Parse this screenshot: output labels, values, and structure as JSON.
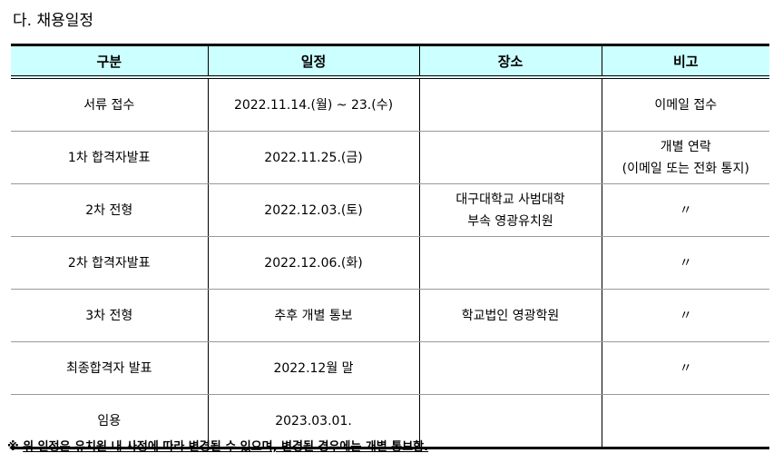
{
  "title": "다. 채용일정",
  "table": {
    "headers": [
      "구분",
      "일정",
      "장소",
      "비고"
    ],
    "rows": [
      {
        "category": "서류 접수",
        "schedule": "2022.11.14.(월) ~ 23.(수)",
        "place": "",
        "note": [
          "이메일 접수"
        ]
      },
      {
        "category": "1차 합격자발표",
        "schedule": "2022.11.25.(금)",
        "place": "",
        "note": [
          "개별 연락",
          "(이메일 또는 전화 통지)"
        ]
      },
      {
        "category": "2차 전형",
        "schedule": "2022.12.03.(토)",
        "place": [
          "대구대학교 사범대학",
          "부속 영광유치원"
        ],
        "note": [
          "〃"
        ]
      },
      {
        "category": "2차 합격자발표",
        "schedule": "2022.12.06.(화)",
        "place": "",
        "note": [
          "〃"
        ]
      },
      {
        "category": "3차 전형",
        "schedule": "추후 개별 통보",
        "place": [
          "학교법인 영광학원"
        ],
        "note": [
          "〃"
        ]
      },
      {
        "category": "최종합격자 발표",
        "schedule": "2022.12월 말",
        "place": "",
        "note": [
          "〃"
        ]
      },
      {
        "category": "임용",
        "schedule": "2023.03.01.",
        "place": "",
        "note": []
      }
    ]
  },
  "footnote": {
    "mark": "※",
    "text": "위 일정은 유치원 내 사정에 따라 변경될 수 있으며, 변경될 경우에는 개별 통보함."
  },
  "colors": {
    "header_bg": "#ccffff"
  }
}
